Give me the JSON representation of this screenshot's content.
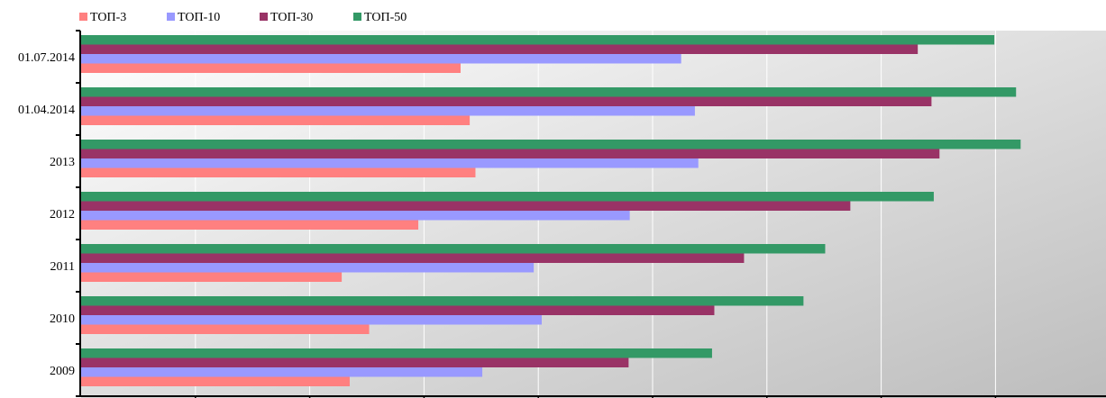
{
  "chart_data": {
    "type": "bar",
    "orientation": "horizontal",
    "title": "",
    "xlabel": "",
    "ylabel": "",
    "categories": [
      "01.07.2014",
      "01.04.2014",
      "2013",
      "2012",
      "2011",
      "2010",
      "2009"
    ],
    "series": [
      {
        "name": "ТОП-3",
        "color": "#ff8080",
        "values": [
          33.2,
          34.0,
          34.5,
          29.5,
          22.8,
          25.2,
          23.5
        ]
      },
      {
        "name": "ТОП-10",
        "color": "#9999ff",
        "values": [
          52.5,
          53.7,
          54.0,
          48.0,
          39.6,
          40.3,
          35.1
        ]
      },
      {
        "name": "ТОП-30",
        "color": "#993366",
        "values": [
          73.2,
          74.4,
          75.1,
          67.3,
          58.0,
          55.4,
          47.9
        ]
      },
      {
        "name": "ТОП-50",
        "color": "#339966",
        "values": [
          79.9,
          81.8,
          82.2,
          74.6,
          65.1,
          63.2,
          55.2
        ]
      }
    ],
    "xlim": [
      0,
      90
    ],
    "grid": true,
    "legend_position": "top-left"
  }
}
